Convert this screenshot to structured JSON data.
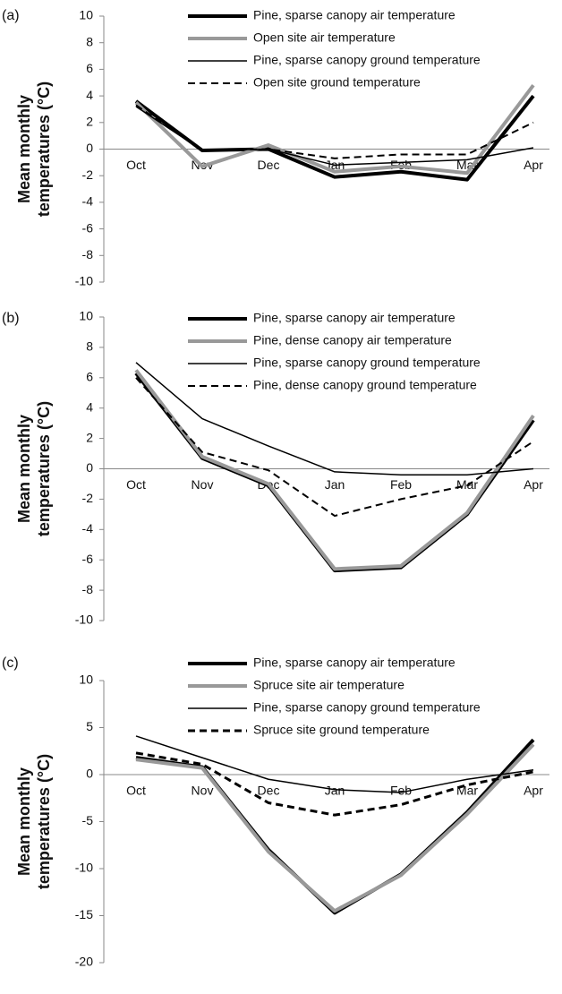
{
  "chart_data": [
    {
      "type": "line",
      "panel": "(a)",
      "ylabel": [
        "Mean monthly",
        "temperatures (°C)"
      ],
      "categories": [
        "Oct",
        "Nov",
        "Dec",
        "Jan",
        "Feb",
        "Mar",
        "Apr"
      ],
      "ylim": [
        -10,
        10
      ],
      "yticks": [
        -10,
        -8,
        -6,
        -4,
        -2,
        0,
        2,
        4,
        6,
        8,
        10
      ],
      "series": [
        {
          "name": "Pine, sparse canopy air temperature",
          "color": "#000000",
          "linewidth": 4,
          "line_style": "solid",
          "values": [
            3.6,
            -0.1,
            0.0,
            -2.1,
            -1.7,
            -2.3,
            4.0
          ]
        },
        {
          "name": "Open site air temperature",
          "color": "#999999",
          "linewidth": 4,
          "line_style": "solid",
          "values": [
            3.5,
            -1.3,
            0.3,
            -1.7,
            -1.3,
            -1.8,
            4.8
          ]
        },
        {
          "name": "Pine, sparse canopy ground temperature",
          "color": "#000000",
          "linewidth": 1.5,
          "line_style": "solid",
          "values": [
            3.2,
            -0.1,
            0.0,
            -1.2,
            -1.0,
            -0.8,
            0.1
          ]
        },
        {
          "name": "Open site ground temperature",
          "color": "#000000",
          "linewidth": 2,
          "line_style": "dashed",
          "values": [
            3.3,
            -0.1,
            0.0,
            -0.7,
            -0.4,
            -0.4,
            2.0
          ]
        }
      ]
    },
    {
      "type": "line",
      "panel": "(b)",
      "ylabel": [
        "Mean monthly",
        "temperatures (°C)"
      ],
      "categories": [
        "Oct",
        "Nov",
        "Dec",
        "Jan",
        "Feb",
        "Mar",
        "Apr"
      ],
      "ylim": [
        -10,
        10
      ],
      "yticks": [
        -10,
        -8,
        -6,
        -4,
        -2,
        0,
        2,
        4,
        6,
        8,
        10
      ],
      "series": [
        {
          "name": "Pine, sparse canopy air temperature",
          "color": "#000000",
          "linewidth": 4,
          "line_style": "solid",
          "values": [
            6.3,
            0.7,
            -1.1,
            -6.7,
            -6.5,
            -3.0,
            3.2
          ]
        },
        {
          "name": "Pine, dense canopy air temperature",
          "color": "#999999",
          "linewidth": 4,
          "line_style": "solid",
          "values": [
            6.5,
            0.8,
            -1.0,
            -6.6,
            -6.4,
            -2.9,
            3.5
          ]
        },
        {
          "name": "Pine, sparse canopy ground temperature",
          "color": "#000000",
          "linewidth": 1.5,
          "line_style": "solid",
          "values": [
            7.0,
            3.3,
            1.5,
            -0.2,
            -0.4,
            -0.4,
            0.0
          ]
        },
        {
          "name": "Pine, dense canopy ground temperature",
          "color": "#000000",
          "linewidth": 2,
          "line_style": "dashed",
          "values": [
            6.0,
            1.1,
            -0.1,
            -3.1,
            -2.0,
            -1.1,
            1.8
          ]
        }
      ]
    },
    {
      "type": "line",
      "panel": "(c)",
      "ylabel": [
        "Mean monthly",
        "temperatures (°C)"
      ],
      "categories": [
        "Oct",
        "Nov",
        "Dec",
        "Jan",
        "Feb",
        "Mar",
        "Apr"
      ],
      "ylim": [
        -20,
        10
      ],
      "yticks": [
        -20,
        -15,
        -10,
        -5,
        0,
        5,
        10
      ],
      "series": [
        {
          "name": "Pine, sparse canopy air temperature",
          "color": "#000000",
          "linewidth": 4,
          "line_style": "solid",
          "values": [
            1.8,
            0.8,
            -8.0,
            -14.7,
            -10.6,
            -4.0,
            3.7
          ]
        },
        {
          "name": "Spruce site air temperature",
          "color": "#999999",
          "linewidth": 4,
          "line_style": "solid",
          "values": [
            1.6,
            0.7,
            -8.2,
            -14.5,
            -10.7,
            -4.2,
            3.2
          ]
        },
        {
          "name": "Pine, sparse canopy ground temperature",
          "color": "#000000",
          "linewidth": 1.5,
          "line_style": "solid",
          "values": [
            4.1,
            1.8,
            -0.5,
            -1.6,
            -1.9,
            -0.5,
            0.5
          ]
        },
        {
          "name": "Spruce site ground temperature",
          "color": "#000000",
          "linewidth": 3,
          "line_style": "dashed",
          "values": [
            2.3,
            1.1,
            -3.0,
            -4.3,
            -3.2,
            -1.1,
            0.3
          ]
        }
      ]
    }
  ]
}
